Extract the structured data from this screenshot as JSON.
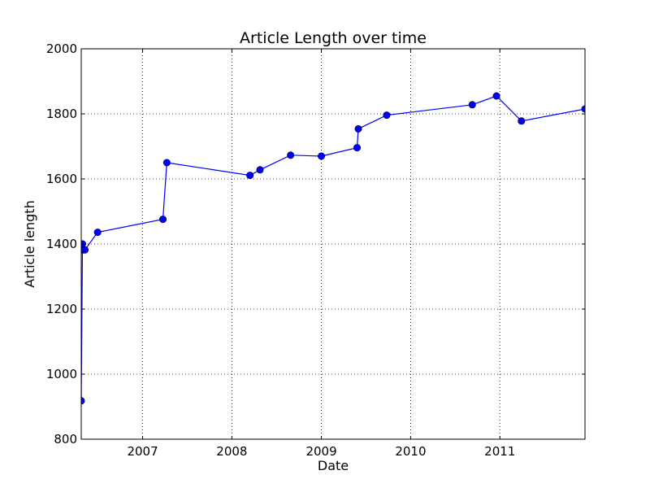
{
  "chart_data": {
    "type": "line",
    "title": "Article Length over time",
    "xlabel": "Date",
    "ylabel": "Article length",
    "xlim": [
      "2006-04-25",
      "2011-12-15"
    ],
    "ylim": [
      800,
      2000
    ],
    "xticks": [
      {
        "date": "2007-01-01",
        "label": "2007"
      },
      {
        "date": "2008-01-01",
        "label": "2008"
      },
      {
        "date": "2009-01-01",
        "label": "2009"
      },
      {
        "date": "2010-01-01",
        "label": "2010"
      },
      {
        "date": "2011-01-01",
        "label": "2011"
      }
    ],
    "yticks": [
      800,
      1000,
      1200,
      1400,
      1600,
      1800,
      2000
    ],
    "grid": true,
    "legend": "none",
    "colors": {
      "line": "#0000ff",
      "marker": "#0000ff"
    },
    "series": [
      {
        "points": [
          {
            "x": "2006-04-25",
            "y": 918
          },
          {
            "x": "2006-04-30",
            "y": 1400
          },
          {
            "x": "2006-05-03",
            "y": 1382
          },
          {
            "x": "2006-05-10",
            "y": 1382
          },
          {
            "x": "2006-07-01",
            "y": 1436
          },
          {
            "x": "2007-03-25",
            "y": 1476
          },
          {
            "x": "2007-04-10",
            "y": 1650
          },
          {
            "x": "2008-03-15",
            "y": 1611
          },
          {
            "x": "2008-04-25",
            "y": 1628
          },
          {
            "x": "2008-08-28",
            "y": 1673
          },
          {
            "x": "2009-01-01",
            "y": 1670
          },
          {
            "x": "2009-05-27",
            "y": 1696
          },
          {
            "x": "2009-06-01",
            "y": 1754
          },
          {
            "x": "2009-09-25",
            "y": 1796
          },
          {
            "x": "2010-09-10",
            "y": 1828
          },
          {
            "x": "2010-12-18",
            "y": 1855
          },
          {
            "x": "2011-03-30",
            "y": 1778
          },
          {
            "x": "2011-12-15",
            "y": 1815
          }
        ]
      }
    ]
  }
}
